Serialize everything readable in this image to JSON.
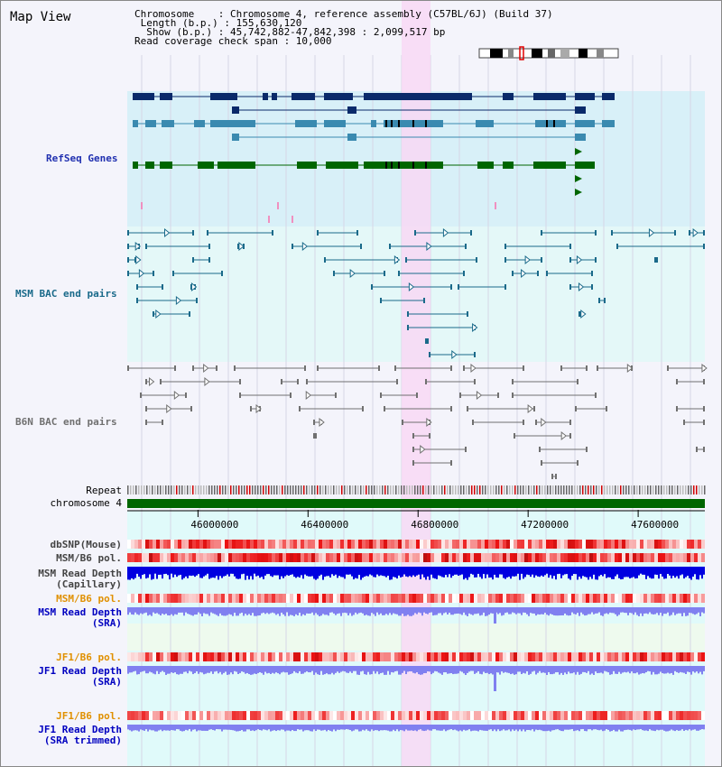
{
  "window": {
    "title": "Map View"
  },
  "info": {
    "chromosome_line": "Chromosome    : Chromosome 4, reference assembly (C57BL/6J) (Build 37)",
    "length_line": " Length (b.p.) : 155,630,120",
    "show_line": "  Show (b.p.) : 45,742,882-47,842,398 : 2,099,517 bp",
    "coverage_line": "Read coverage check span : 10,000"
  },
  "tracks": {
    "refseq": "RefSeq Genes",
    "msm_bac": "MSM BAC end pairs",
    "b6n_bac": "B6N BAC end pairs",
    "repeat": "Repeat",
    "chromosome": "chromosome 4"
  },
  "axis": {
    "ticks": [
      {
        "label": "46000000"
      },
      {
        "label": "46400000"
      },
      {
        "label": "46800000"
      },
      {
        "label": "47200000"
      },
      {
        "label": "47600000"
      }
    ]
  },
  "lower_tracks": {
    "dbsnp": "dbSNP(Mouse)",
    "msm_b6_pol": "MSM/B6 pol.",
    "msm_depth_cap_1": "MSM Read Depth",
    "msm_depth_cap_2": "(Capillary)",
    "msm_b6_pol_2": "MSM/B6 pol.",
    "msm_depth_sra_1": "MSM Read Depth",
    "msm_depth_sra_2": "(SRA)",
    "jf1_b6_pol": "JF1/B6 pol.",
    "jf1_depth_sra_1": "JF1 Read Depth",
    "jf1_depth_sra_2": "(SRA)",
    "jf1_b6_pol_2": "JF1/B6 pol.",
    "jf1_depth_trim_1": "JF1 Read Depth",
    "jf1_depth_trim_2": "(SRA trimmed)"
  },
  "colors": {
    "refseq_bg": "#d8f0f8",
    "msm_bg": "#e4f8f8",
    "highlight": "#f8d8f4",
    "gene_dark": "#0a2a6a",
    "gene_mid": "#3a8ab0",
    "gene_green": "#006600",
    "bac_msm": "#1a6a8a",
    "bac_b6n": "#707070",
    "depth_dark": "#0000e0",
    "depth_light": "#8080f0"
  }
}
